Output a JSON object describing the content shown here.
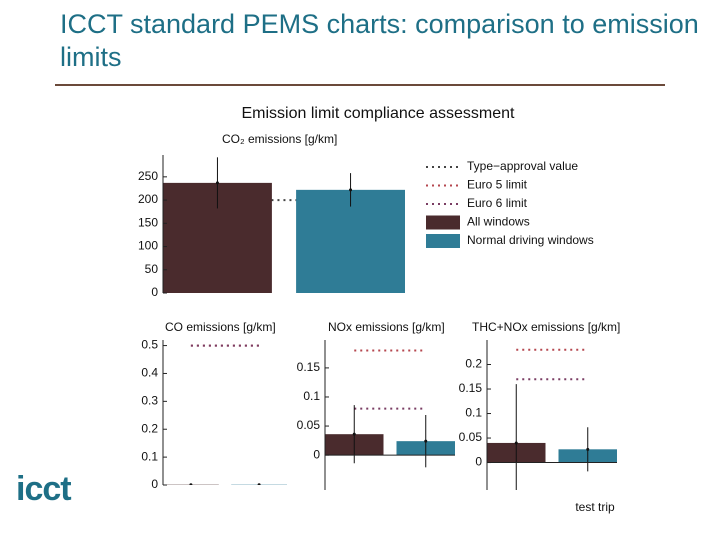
{
  "slide_title": "ICCT standard PEMS charts: comparison to emission limits",
  "logo": "icct",
  "chart_data": [
    {
      "type": "bar",
      "title": "Emission limit compliance assessment",
      "ylabel": "CO₂ emissions [g/km]",
      "ylim": [
        0,
        297
      ],
      "yticks": [
        0,
        50,
        100,
        150,
        200,
        250
      ],
      "legend": "right",
      "series": [
        {
          "name": "All windows",
          "color": "#4a2b2d",
          "values": [
            237
          ],
          "errors": [
            55
          ]
        },
        {
          "name": "Normal driving windows",
          "color": "#2f7c96",
          "values": [
            222
          ],
          "errors": [
            36
          ]
        }
      ],
      "reference_lines": [
        {
          "name": "Type−approval value",
          "color": "#444444",
          "value": 200
        },
        {
          "name": "Euro 5 limit",
          "color": "#b5474f",
          "value": null
        },
        {
          "name": "Euro 6 limit",
          "color": "#7a3d63",
          "value": null
        }
      ]
    },
    {
      "type": "bar",
      "ylabel": "CO emissions [g/km]",
      "ylim": [
        0,
        0.52
      ],
      "yticks": [
        0,
        0.1,
        0.2,
        0.3,
        0.4,
        0.5
      ],
      "series": [
        {
          "color": "#4a2b2d",
          "values": [
            0.001
          ],
          "errors": [
            0.001
          ]
        },
        {
          "color": "#2f7c96",
          "values": [
            0.001
          ],
          "errors": [
            0.001
          ]
        }
      ],
      "reference_lines": [
        {
          "color": "#b5474f",
          "value": 0.5
        },
        {
          "color": "#7a3d63",
          "value": 0.5
        }
      ]
    },
    {
      "type": "bar",
      "ylabel": "NOx emissions [g/km]",
      "ylim": [
        -0.06,
        0.198
      ],
      "yticks": [
        0,
        0.05,
        0.1,
        0.15
      ],
      "series": [
        {
          "color": "#4a2b2d",
          "values": [
            0.036
          ],
          "errors": [
            0.05
          ]
        },
        {
          "color": "#2f7c96",
          "values": [
            0.024
          ],
          "errors": [
            0.045
          ]
        }
      ],
      "reference_lines": [
        {
          "color": "#b5474f",
          "value": 0.18
        },
        {
          "color": "#7a3d63",
          "value": 0.08
        }
      ]
    },
    {
      "type": "bar",
      "ylabel": "THC+NOx emissions [g/km]",
      "xlabel": "test trip",
      "ylim": [
        -0.056,
        0.25
      ],
      "yticks": [
        0,
        0.05,
        0.1,
        0.15,
        0.2
      ],
      "series": [
        {
          "color": "#4a2b2d",
          "values": [
            0.04
          ],
          "errors": [
            0.12
          ]
        },
        {
          "color": "#2f7c96",
          "values": [
            0.027
          ],
          "errors": [
            0.045
          ]
        }
      ],
      "reference_lines": [
        {
          "color": "#b5474f",
          "value": 0.23
        },
        {
          "color": "#7a3d63",
          "value": 0.17
        }
      ]
    }
  ]
}
